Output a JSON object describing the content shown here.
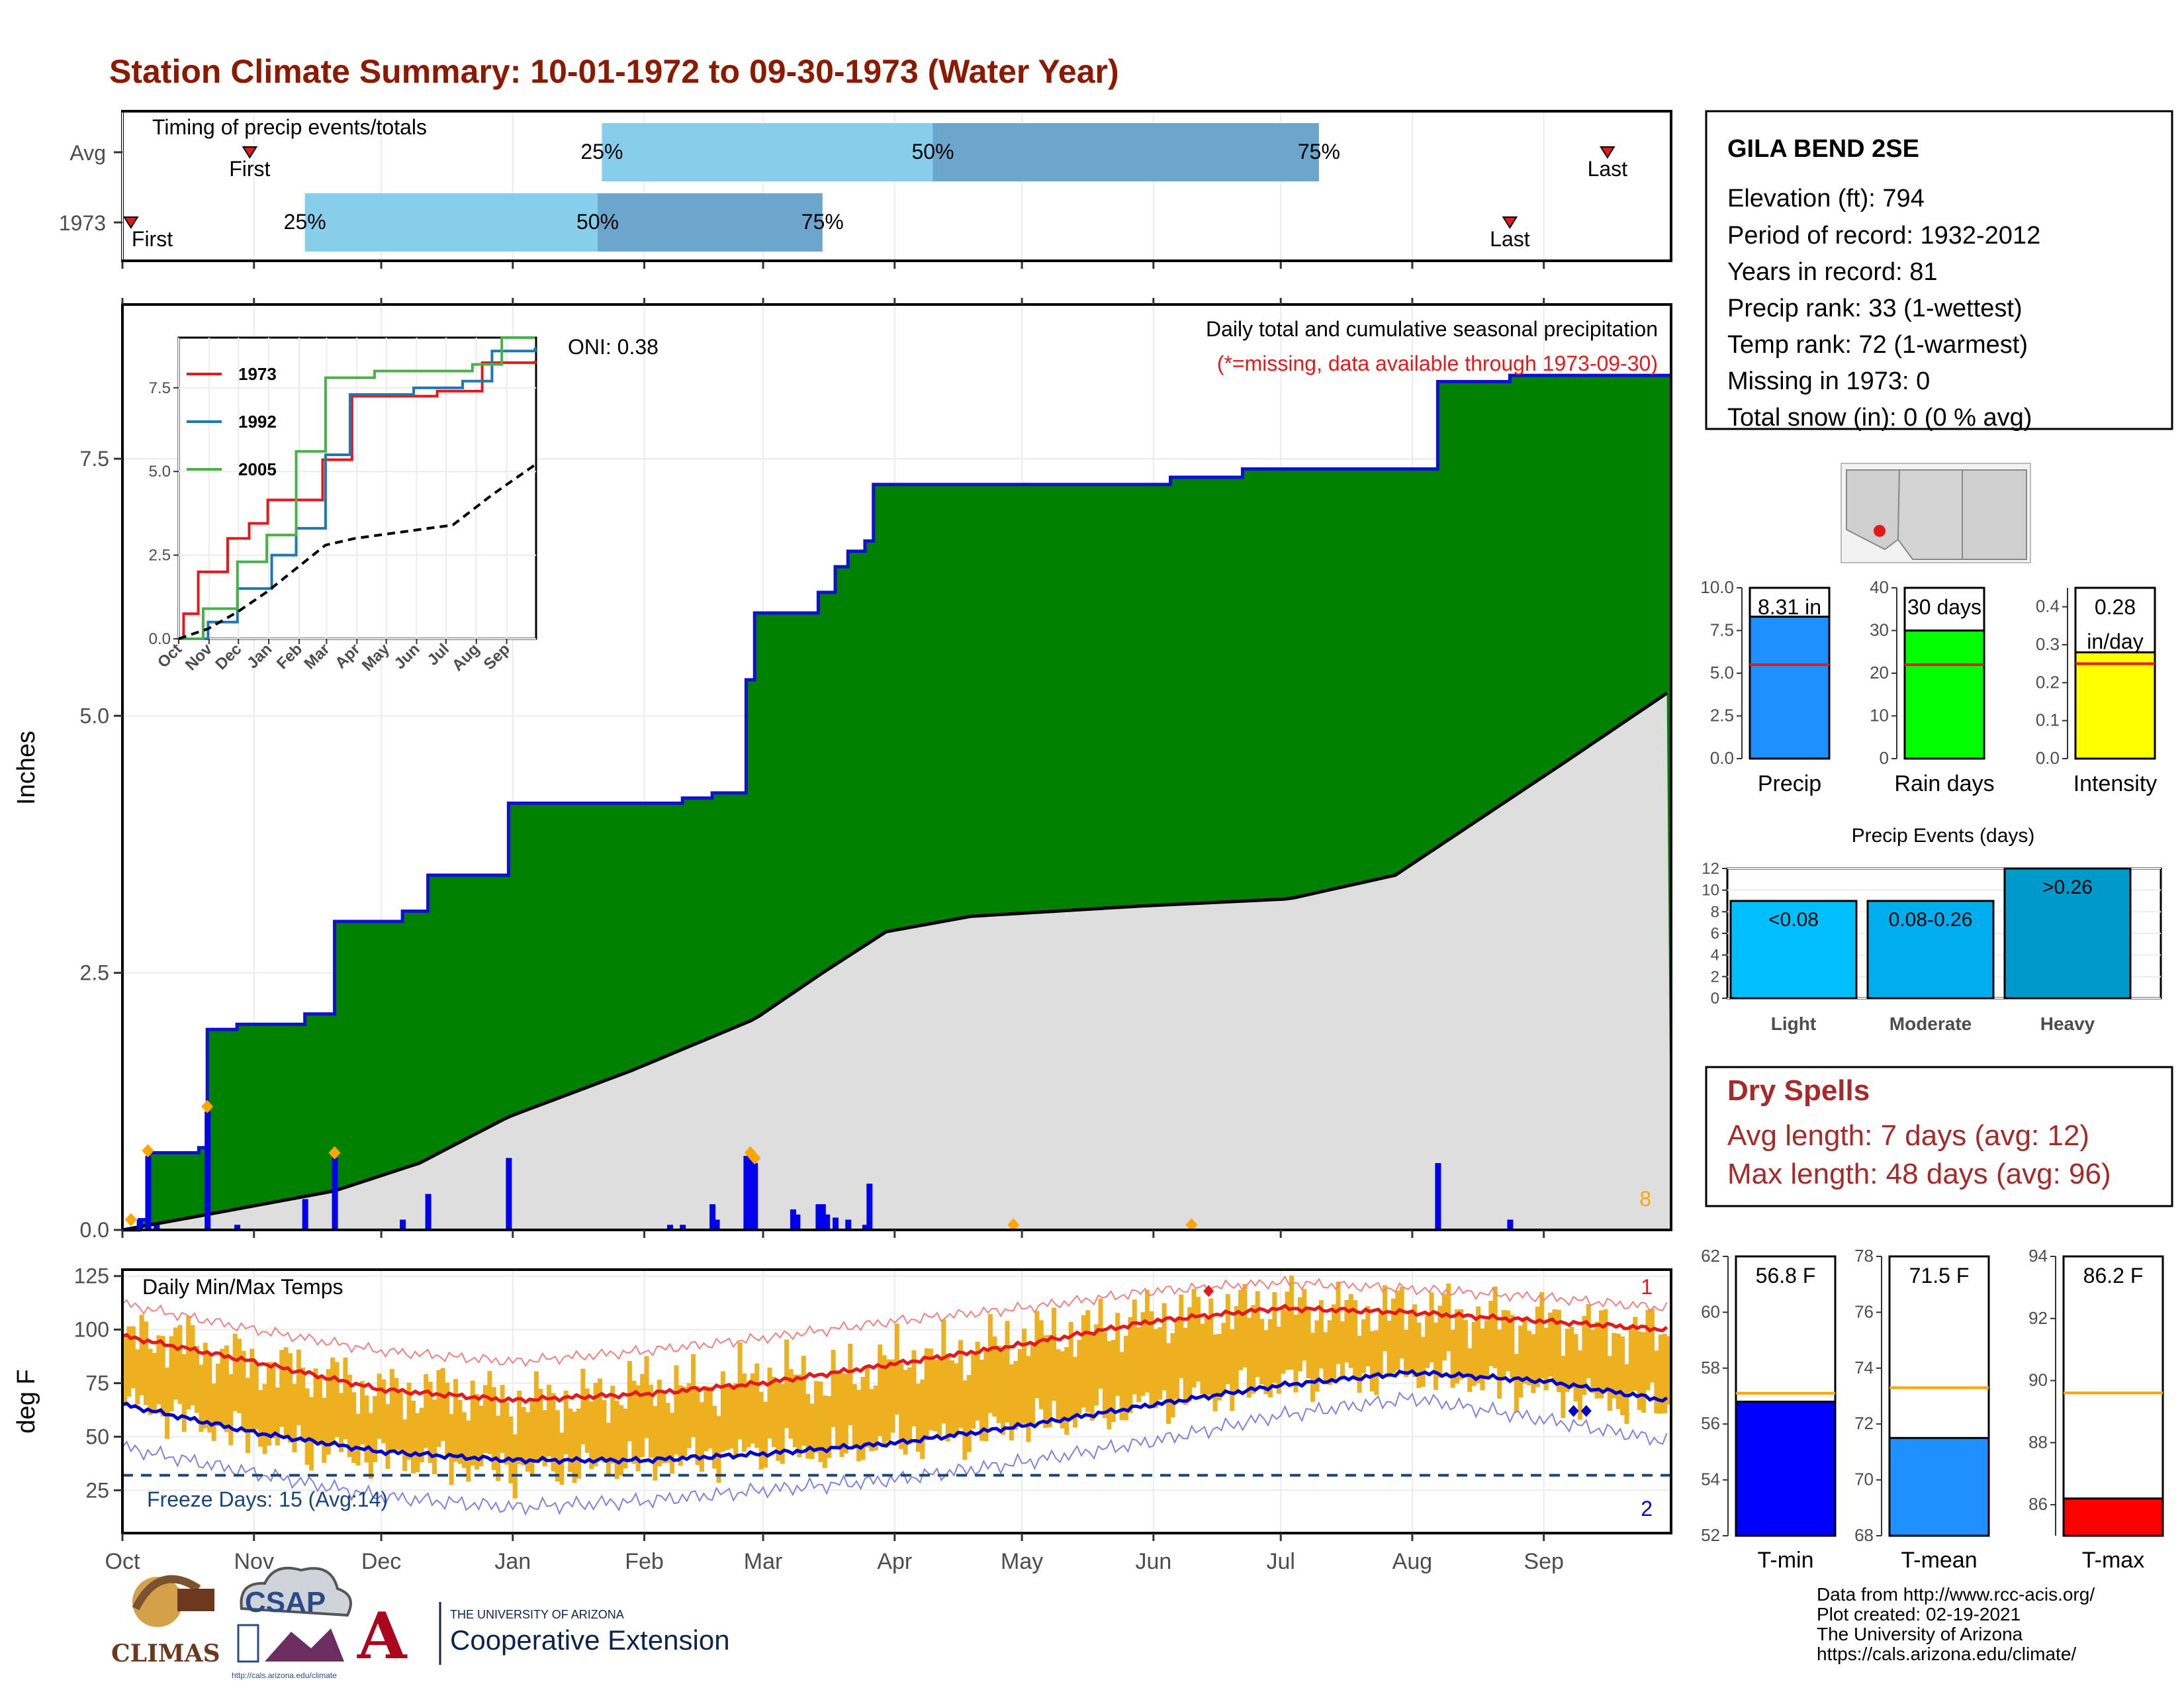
{
  "title": "Station Climate Summary: 10-01-1972 to 09-30-1973 (Water Year)",
  "months": [
    "Oct",
    "Nov",
    "Dec",
    "Jan",
    "Feb",
    "Mar",
    "Apr",
    "May",
    "Jun",
    "Jul",
    "Aug",
    "Sep"
  ],
  "colors": {
    "title": "#8B1A00",
    "green": "#008000",
    "blue": "#1010D0",
    "gray": "#DEDEDE",
    "gold": "#EDB120",
    "red": "#E31A1C",
    "q1": "#87CEEB",
    "q2": "#6CA6CD"
  },
  "timing": {
    "title": "Timing of precip events/totals",
    "rows": [
      {
        "label": "Avg",
        "first": "First",
        "last": "Last",
        "first_day": 30,
        "last_day": 350,
        "q25_day": 113,
        "q50_day": 191,
        "q75_day": 282,
        "q25": "25%",
        "q50": "50%",
        "q75": "75%"
      },
      {
        "label": "1973",
        "first": "First",
        "last": "Last",
        "first_day": 2,
        "last_day": 327,
        "q25_day": 43,
        "q50_day": 112,
        "q75_day": 165,
        "q25": "25%",
        "q50": "50%",
        "q75": "75%"
      }
    ]
  },
  "precip": {
    "ylabel": "Inches",
    "annotation_title": "Daily total and cumulative seasonal precipitation",
    "annotation_missing": "(*=missing, data available through 1973-09-30)",
    "oni": "ONI: 0.38",
    "right_note": "8",
    "yticks": [
      "0.0",
      "2.5",
      "5.0",
      "7.5"
    ],
    "ylim": [
      0,
      9.0
    ]
  },
  "chart_data": [
    {
      "type": "area",
      "name": "cumulative-precip-1973",
      "x_unit": "day of water year",
      "steps": [
        [
          0,
          0
        ],
        [
          4,
          0.1
        ],
        [
          6,
          0.75
        ],
        [
          18,
          0.8
        ],
        [
          20,
          1.95
        ],
        [
          27,
          2.0
        ],
        [
          43,
          2.1
        ],
        [
          50,
          3.0
        ],
        [
          66,
          3.1
        ],
        [
          72,
          3.45
        ],
        [
          91,
          4.15
        ],
        [
          129,
          4.15
        ],
        [
          132,
          4.2
        ],
        [
          139,
          4.25
        ],
        [
          147,
          5.35
        ],
        [
          149,
          6.0
        ],
        [
          164,
          6.2
        ],
        [
          168,
          6.45
        ],
        [
          171,
          6.6
        ],
        [
          175,
          6.7
        ],
        [
          177,
          7.25
        ],
        [
          247,
          7.32
        ],
        [
          264,
          7.4
        ],
        [
          310,
          8.25
        ],
        [
          327,
          8.31
        ],
        [
          364,
          8.31
        ]
      ],
      "avg_cumulative": [
        [
          0,
          0
        ],
        [
          20,
          0.15
        ],
        [
          50,
          0.38
        ],
        [
          70,
          0.65
        ],
        [
          91,
          1.1
        ],
        [
          120,
          1.55
        ],
        [
          149,
          2.05
        ],
        [
          165,
          2.5
        ],
        [
          180,
          2.9
        ],
        [
          200,
          3.05
        ],
        [
          240,
          3.15
        ],
        [
          275,
          3.22
        ],
        [
          300,
          3.45
        ],
        [
          320,
          4.0
        ],
        [
          340,
          4.55
        ],
        [
          364,
          5.22
        ]
      ],
      "daily_bars": [
        [
          4,
          0.1
        ],
        [
          6,
          0.72
        ],
        [
          8,
          0.05
        ],
        [
          20,
          1.15
        ],
        [
          27,
          0.05
        ],
        [
          43,
          0.3
        ],
        [
          50,
          0.7
        ],
        [
          66,
          0.1
        ],
        [
          72,
          0.35
        ],
        [
          91,
          0.7
        ],
        [
          129,
          0.05
        ],
        [
          132,
          0.05
        ],
        [
          139,
          0.25
        ],
        [
          140,
          0.1
        ],
        [
          147,
          0.72
        ],
        [
          148,
          0.7
        ],
        [
          149,
          0.65
        ],
        [
          158,
          0.2
        ],
        [
          159,
          0.15
        ],
        [
          164,
          0.25
        ],
        [
          165,
          0.25
        ],
        [
          166,
          0.15
        ],
        [
          168,
          0.12
        ],
        [
          171,
          0.1
        ],
        [
          175,
          0.05
        ],
        [
          176,
          0.45
        ],
        [
          310,
          0.65
        ],
        [
          327,
          0.1
        ]
      ],
      "missing_days": [
        2,
        6,
        20,
        50,
        148,
        149,
        210,
        252
      ],
      "ylim": [
        0,
        9.0
      ]
    },
    {
      "type": "line",
      "name": "inset-cumulative-years",
      "yticks": [
        "0.0",
        "2.5",
        "5.0",
        "7.5"
      ],
      "ylim": [
        0,
        9.0
      ],
      "series": [
        {
          "name": "1973",
          "color": "#E31A1C",
          "points": [
            [
              0,
              0
            ],
            [
              5,
              0.75
            ],
            [
              20,
              2.0
            ],
            [
              50,
              3.0
            ],
            [
              72,
              3.45
            ],
            [
              91,
              4.15
            ],
            [
              147,
              5.35
            ],
            [
              177,
              7.25
            ],
            [
              264,
              7.4
            ],
            [
              310,
              8.25
            ],
            [
              364,
              8.31
            ]
          ]
        },
        {
          "name": "1992",
          "color": "#1F78B4",
          "points": [
            [
              0,
              0
            ],
            [
              30,
              0.5
            ],
            [
              60,
              1.5
            ],
            [
              95,
              2.5
            ],
            [
              120,
              3.3
            ],
            [
              150,
              5.5
            ],
            [
              175,
              7.3
            ],
            [
              240,
              7.5
            ],
            [
              290,
              7.7
            ],
            [
              320,
              8.6
            ],
            [
              364,
              8.7
            ]
          ]
        },
        {
          "name": "2005",
          "color": "#4DAF4A",
          "points": [
            [
              0,
              0
            ],
            [
              25,
              0.9
            ],
            [
              60,
              2.3
            ],
            [
              90,
              3.1
            ],
            [
              120,
              5.6
            ],
            [
              150,
              7.8
            ],
            [
              200,
              8.0
            ],
            [
              260,
              8.0
            ],
            [
              300,
              8.2
            ],
            [
              330,
              9.0
            ],
            [
              364,
              9.0
            ]
          ]
        }
      ],
      "avg": [
        [
          0,
          0
        ],
        [
          30,
          0.3
        ],
        [
          60,
          0.8
        ],
        [
          90,
          1.4
        ],
        [
          120,
          2.1
        ],
        [
          150,
          2.8
        ],
        [
          180,
          3.0
        ],
        [
          230,
          3.2
        ],
        [
          280,
          3.4
        ],
        [
          320,
          4.3
        ],
        [
          364,
          5.2
        ]
      ]
    },
    {
      "type": "bar",
      "name": "precip-total-comparisons",
      "panels": [
        {
          "title": "Precip",
          "label": "8.31 in",
          "value": 8.31,
          "avg": 5.5,
          "ylim": [
            0,
            10.0
          ],
          "yticks": [
            "0.0",
            "2.5",
            "5.0",
            "7.5",
            "10.0"
          ],
          "color": "#1E90FF"
        },
        {
          "title": "Rain days",
          "label": "30 days",
          "value": 30,
          "avg": 22,
          "ylim": [
            0,
            40
          ],
          "yticks": [
            "0",
            "10",
            "20",
            "30",
            "40"
          ],
          "color": "#00FF00"
        },
        {
          "title": "Intensity",
          "label_line1": "0.28",
          "label_line2": "in/day",
          "value": 0.28,
          "avg": 0.25,
          "ylim": [
            0,
            0.45
          ],
          "yticks": [
            "0.0",
            "0.1",
            "0.2",
            "0.3",
            "0.4"
          ],
          "color": "#FFFF00"
        }
      ]
    },
    {
      "type": "bar",
      "name": "precip-events",
      "title": "Precip Events (days)",
      "categories": [
        "Light",
        "Moderate",
        "Heavy"
      ],
      "labels": [
        "<0.08",
        "0.08-0.26",
        ">0.26"
      ],
      "values": [
        9,
        9,
        12
      ],
      "colors": [
        "#00BFFF",
        "#00AEEF",
        "#0099CC"
      ],
      "ylim": [
        0,
        12
      ],
      "yticks": [
        "0",
        "2",
        "4",
        "6",
        "8",
        "10",
        "12"
      ]
    },
    {
      "type": "bar",
      "name": "temperature-comparisons",
      "panels": [
        {
          "title": "T-min",
          "label": "56.8 F",
          "value": 56.8,
          "avg": 57.1,
          "ylim": [
            52,
            62
          ],
          "yticks": [
            "52",
            "54",
            "56",
            "58",
            "60",
            "62"
          ],
          "color": "#0000FF"
        },
        {
          "title": "T-mean",
          "label": "71.5 F",
          "value": 71.5,
          "avg": 73.3,
          "ylim": [
            68,
            78
          ],
          "yticks": [
            "68",
            "70",
            "72",
            "74",
            "76",
            "78"
          ],
          "color": "#1E90FF"
        },
        {
          "title": "T-max",
          "label": "86.2 F",
          "value": 86.2,
          "avg": 89.6,
          "ylim": [
            85,
            94
          ],
          "yticks": [
            "86",
            "88",
            "90",
            "92",
            "94"
          ],
          "color": "#FF0000"
        }
      ]
    }
  ],
  "temps": {
    "ylabel": "deg F",
    "title": "Daily Min/Max Temps",
    "freeze_label": "Freeze Days: 15 (Avg:14)",
    "freeze_line": 32,
    "count_high": "1",
    "count_low": "2",
    "yticks": [
      "25",
      "50",
      "75",
      "100",
      "125"
    ],
    "ylim": [
      5,
      128
    ],
    "avg_max": [
      [
        0,
        97
      ],
      [
        31,
        85
      ],
      [
        61,
        72
      ],
      [
        92,
        67
      ],
      [
        123,
        70
      ],
      [
        151,
        75
      ],
      [
        182,
        84
      ],
      [
        212,
        93
      ],
      [
        243,
        104
      ],
      [
        273,
        110
      ],
      [
        304,
        108
      ],
      [
        335,
        104
      ],
      [
        364,
        100
      ]
    ],
    "avg_min": [
      [
        0,
        65
      ],
      [
        31,
        52
      ],
      [
        61,
        43
      ],
      [
        92,
        39
      ],
      [
        123,
        39
      ],
      [
        151,
        42
      ],
      [
        182,
        47
      ],
      [
        212,
        55
      ],
      [
        243,
        65
      ],
      [
        273,
        74
      ],
      [
        304,
        80
      ],
      [
        335,
        76
      ],
      [
        364,
        67
      ]
    ],
    "rec_max": [
      [
        0,
        112
      ],
      [
        31,
        100
      ],
      [
        61,
        90
      ],
      [
        92,
        85
      ],
      [
        123,
        90
      ],
      [
        151,
        96
      ],
      [
        182,
        104
      ],
      [
        212,
        110
      ],
      [
        243,
        118
      ],
      [
        273,
        122
      ],
      [
        304,
        119
      ],
      [
        335,
        115
      ],
      [
        364,
        110
      ]
    ],
    "rec_min": [
      [
        0,
        45
      ],
      [
        31,
        33
      ],
      [
        61,
        22
      ],
      [
        92,
        17
      ],
      [
        123,
        20
      ],
      [
        151,
        25
      ],
      [
        182,
        30
      ],
      [
        212,
        38
      ],
      [
        243,
        48
      ],
      [
        273,
        60
      ],
      [
        304,
        68
      ],
      [
        335,
        58
      ],
      [
        364,
        48
      ]
    ],
    "obs_max": [
      [
        0,
        94
      ],
      [
        10,
        98
      ],
      [
        20,
        90
      ],
      [
        31,
        84
      ],
      [
        45,
        80
      ],
      [
        61,
        70
      ],
      [
        75,
        72
      ],
      [
        92,
        66
      ],
      [
        110,
        68
      ],
      [
        123,
        75
      ],
      [
        137,
        72
      ],
      [
        151,
        80
      ],
      [
        166,
        76
      ],
      [
        182,
        86
      ],
      [
        197,
        88
      ],
      [
        212,
        96
      ],
      [
        228,
        100
      ],
      [
        243,
        106
      ],
      [
        258,
        108
      ],
      [
        273,
        112
      ],
      [
        289,
        108
      ],
      [
        304,
        110
      ],
      [
        320,
        106
      ],
      [
        335,
        104
      ],
      [
        350,
        100
      ],
      [
        364,
        98
      ]
    ],
    "obs_min": [
      [
        0,
        66
      ],
      [
        10,
        62
      ],
      [
        20,
        55
      ],
      [
        31,
        50
      ],
      [
        45,
        44
      ],
      [
        61,
        40
      ],
      [
        75,
        38
      ],
      [
        92,
        34
      ],
      [
        110,
        36
      ],
      [
        123,
        38
      ],
      [
        137,
        40
      ],
      [
        151,
        44
      ],
      [
        166,
        42
      ],
      [
        182,
        48
      ],
      [
        197,
        50
      ],
      [
        212,
        56
      ],
      [
        228,
        60
      ],
      [
        243,
        66
      ],
      [
        258,
        70
      ],
      [
        273,
        76
      ],
      [
        289,
        78
      ],
      [
        304,
        80
      ],
      [
        320,
        76
      ],
      [
        335,
        72
      ],
      [
        350,
        66
      ],
      [
        364,
        64
      ]
    ]
  },
  "station": {
    "name": "GILA BEND 2SE",
    "lines": [
      "Elevation (ft): 794",
      "Period of record: 1932-2012",
      "Years in record: 81",
      "Precip rank: 33 (1-wettest)",
      "Temp rank: 72 (1-warmest)",
      "Missing in 1973: 0",
      "Total snow (in): 0 (0 % avg)"
    ]
  },
  "dry_spells": {
    "title": "Dry Spells",
    "avg": "Avg length: 7 days (avg: 12)",
    "max": "Max length: 48 days (avg: 96)"
  },
  "logos": {
    "climas": "CLIMAS",
    "csap": "CSAP",
    "ua_top": "THE UNIVERSITY OF ARIZONA",
    "ua_bottom": "Cooperative Extension",
    "csap_url": "http://cals.arizona.edu/climate"
  },
  "credits": [
    "Data from http://www.rcc-acis.org/",
    "Plot created: 02-19-2021",
    "The University of Arizona",
    "https://cals.arizona.edu/climate/"
  ]
}
